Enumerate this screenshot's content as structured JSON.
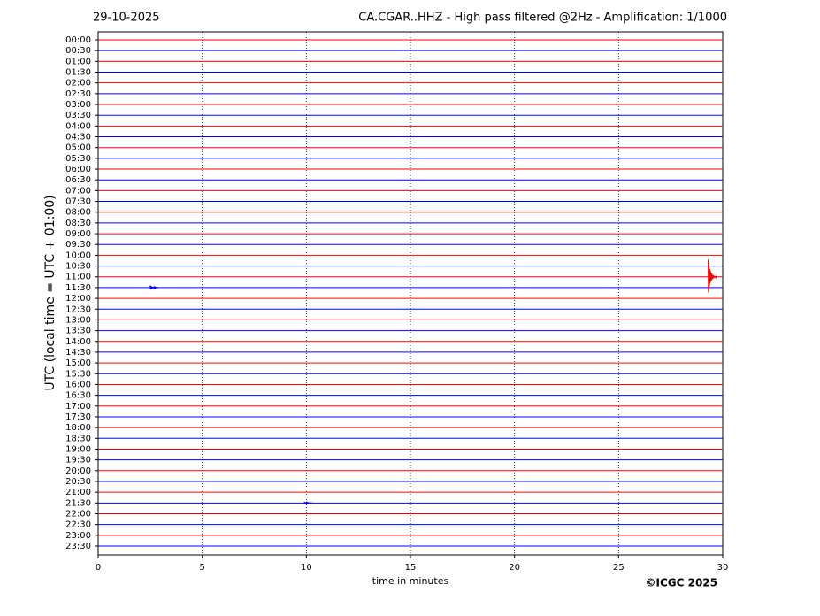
{
  "chart_data": {
    "type": "helicorder",
    "date": "29-10-2025",
    "title": "CA.CGAR..HHZ - High pass filtered @2Hz - Amplification: 1/1000",
    "ylabel": "UTC (local time = UTC + 01:00)",
    "xlabel": "time in minutes",
    "copyright": "©ICGC 2025",
    "categories": [
      "00:00",
      "00:30",
      "01:00",
      "01:30",
      "02:00",
      "02:30",
      "03:00",
      "03:30",
      "04:00",
      "04:30",
      "05:00",
      "05:30",
      "06:00",
      "06:30",
      "07:00",
      "07:30",
      "08:00",
      "08:30",
      "09:00",
      "09:30",
      "10:00",
      "10:30",
      "11:00",
      "11:30",
      "12:00",
      "12:30",
      "13:00",
      "13:30",
      "14:00",
      "14:30",
      "15:00",
      "15:30",
      "16:00",
      "16:30",
      "17:00",
      "17:30",
      "18:00",
      "18:30",
      "19:00",
      "19:30",
      "20:00",
      "20:30",
      "21:00",
      "21:30",
      "22:00",
      "22:30",
      "23:00",
      "23:30"
    ],
    "line_colors": [
      "#ff0000",
      "#0000ff"
    ],
    "xlim": [
      0,
      30
    ],
    "xticks": [
      0,
      5,
      10,
      15,
      20,
      25,
      30
    ],
    "grid": true,
    "events": [
      {
        "row": "11:00",
        "minute": 29.3,
        "amplitude": 1.6
      },
      {
        "row": "11:30",
        "minute": 2.5,
        "amplitude": 0.2
      },
      {
        "row": "21:30",
        "minute": 9.9,
        "amplitude": 0.1
      }
    ]
  }
}
